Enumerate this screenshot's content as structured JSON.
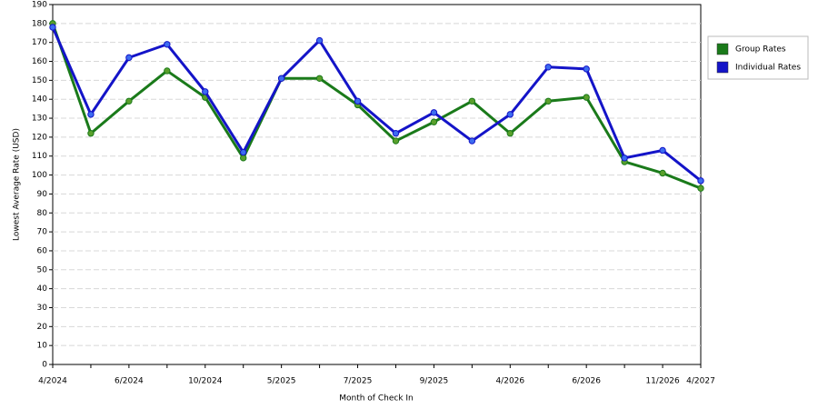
{
  "chart_data": {
    "type": "line",
    "x_label": "Month of Check In",
    "y_label": "Lowest Average Rate (USD)",
    "categories": [
      "4/2024",
      null,
      "6/2024",
      null,
      "10/2024",
      null,
      "5/2025",
      null,
      "7/2025",
      null,
      "9/2025",
      null,
      "4/2026",
      null,
      "6/2026",
      null,
      "11/2026",
      "4/2027"
    ],
    "series": [
      {
        "name": "Group Rates",
        "color": "#1a7a1a",
        "marker_color": "#5aa02c",
        "values": [
          180,
          122,
          139,
          155,
          141,
          109,
          151,
          151,
          137,
          118,
          128,
          139,
          122,
          139,
          141,
          107,
          101,
          93
        ]
      },
      {
        "name": "Individual Rates",
        "color": "#1414c8",
        "marker_color": "#3c6cf0",
        "values": [
          178,
          132,
          162,
          169,
          144,
          112,
          151,
          171,
          139,
          122,
          133,
          118,
          132,
          157,
          156,
          109,
          113,
          97
        ]
      }
    ],
    "ylim": [
      0,
      190
    ],
    "yticks": [
      0,
      10,
      20,
      30,
      40,
      50,
      60,
      70,
      80,
      90,
      100,
      110,
      120,
      130,
      140,
      150,
      160,
      170,
      180,
      190
    ],
    "grid": true,
    "legend": "right"
  }
}
